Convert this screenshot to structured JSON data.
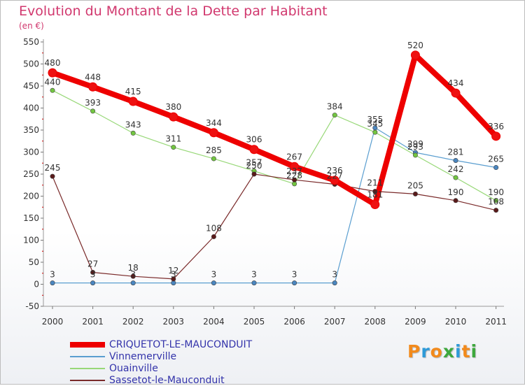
{
  "chart_data": {
    "type": "line",
    "title": "Evolution du Montant de la Dette par Habitant",
    "subtitle": "(en €)",
    "ylim": [
      -50,
      550
    ],
    "yticks": [
      -50,
      0,
      50,
      100,
      150,
      200,
      250,
      300,
      350,
      400,
      450,
      500,
      550
    ],
    "categories": [
      "2000",
      "2001",
      "2002",
      "2003",
      "2004",
      "2005",
      "2006",
      "2007",
      "2008",
      "2009",
      "2010",
      "2011"
    ],
    "series": [
      {
        "name": "Vinnemerville",
        "color": "#5a9ed0",
        "marker": "#4a86c0",
        "values": [
          3,
          3,
          3,
          3,
          3,
          3,
          3,
          3,
          355,
          299,
          281,
          265
        ]
      },
      {
        "name": "Ouainville",
        "color": "#98d878",
        "marker": "#72c640",
        "values": [
          440,
          393,
          343,
          311,
          285,
          257,
          228,
          384,
          345,
          293,
          242,
          190
        ]
      },
      {
        "name": "Sassetot-le-Mauconduit",
        "color": "#7a2a2a",
        "marker": "#5a1a1a",
        "values": [
          245,
          27,
          18,
          12,
          108,
          250,
          237,
          227,
          211,
          205,
          190,
          168
        ]
      },
      {
        "name": "CRIQUETOT-LE-MAUCONDUIT",
        "color": "#ee0000",
        "marker": "#ee1111",
        "values": [
          480,
          448,
          415,
          380,
          344,
          306,
          267,
          236,
          181,
          520,
          434,
          336
        ]
      }
    ],
    "legend_order": [
      "CRIQUETOT-LE-MAUCONDUIT",
      "Vinnemerville",
      "Ouainville",
      "Sassetot-le-Mauconduit"
    ],
    "grid": false
  },
  "logo": {
    "letters": [
      "P",
      "r",
      "o",
      "x",
      "i",
      "t",
      "i"
    ],
    "colors": [
      "#f28a1c",
      "#2e9ad8",
      "#f28a1c",
      "#3da83d",
      "#2e9ad8",
      "#f28a1c",
      "#3da83d"
    ]
  }
}
